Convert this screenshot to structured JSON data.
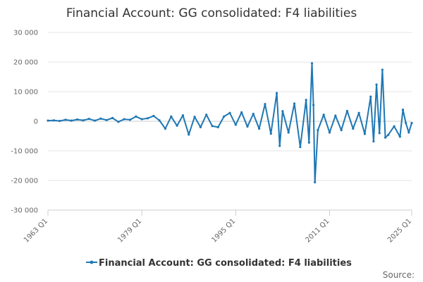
{
  "chart_data": {
    "type": "line",
    "title": "Financial Account: GG consolidated: F4 liabilities",
    "xlabel": "",
    "ylabel": "",
    "source_label": "Source:",
    "legend_position": "bottom",
    "grid": true,
    "xlim": [
      "1963 Q1",
      "2025 Q1"
    ],
    "ylim": [
      -30000,
      30000
    ],
    "ytick_labels": [
      "30 000",
      "20 000",
      "10 000",
      "0",
      "-10 000",
      "-20 000",
      "-30 000"
    ],
    "xtick_labels": [
      "1963 Q1",
      "1979 Q1",
      "1995 Q1",
      "2011 Q1",
      "2025 Q1"
    ],
    "series": [
      {
        "name": "Financial Account: GG consolidated: F4 liabilities",
        "color": "#1f78b4",
        "points": [
          [
            "1963 Q1",
            200
          ],
          [
            "1964 Q1",
            300
          ],
          [
            "1965 Q1",
            100
          ],
          [
            "1966 Q1",
            500
          ],
          [
            "1967 Q1",
            200
          ],
          [
            "1968 Q1",
            600
          ],
          [
            "1969 Q1",
            300
          ],
          [
            "1970 Q1",
            800
          ],
          [
            "1971 Q1",
            200
          ],
          [
            "1972 Q1",
            900
          ],
          [
            "1973 Q1",
            400
          ],
          [
            "1974 Q1",
            1100
          ],
          [
            "1975 Q1",
            -200
          ],
          [
            "1976 Q1",
            700
          ],
          [
            "1977 Q1",
            500
          ],
          [
            "1978 Q1",
            1600
          ],
          [
            "1979 Q1",
            700
          ],
          [
            "1980 Q1",
            1000
          ],
          [
            "1981 Q1",
            1800
          ],
          [
            "1982 Q1",
            300
          ],
          [
            "1983 Q1",
            -2500
          ],
          [
            "1984 Q1",
            1600
          ],
          [
            "1985 Q1",
            -1500
          ],
          [
            "1986 Q1",
            2000
          ],
          [
            "1987 Q1",
            -4500
          ],
          [
            "1988 Q1",
            1500
          ],
          [
            "1989 Q1",
            -2000
          ],
          [
            "1990 Q1",
            2200
          ],
          [
            "1991 Q1",
            -1600
          ],
          [
            "1992 Q1",
            -2000
          ],
          [
            "1993 Q1",
            1600
          ],
          [
            "1994 Q1",
            2800
          ],
          [
            "1995 Q1",
            -1200
          ],
          [
            "1996 Q1",
            3000
          ],
          [
            "1997 Q1",
            -1800
          ],
          [
            "1998 Q1",
            2500
          ],
          [
            "1999 Q1",
            -2500
          ],
          [
            "2000 Q1",
            5800
          ],
          [
            "2001 Q1",
            -4200
          ],
          [
            "2002 Q1",
            9500
          ],
          [
            "2002 Q3",
            -8300
          ],
          [
            "2003 Q1",
            3400
          ],
          [
            "2004 Q1",
            -3800
          ],
          [
            "2005 Q1",
            6000
          ],
          [
            "2006 Q1",
            -8700
          ],
          [
            "2007 Q1",
            7200
          ],
          [
            "2007 Q3",
            -7200
          ],
          [
            "2008 Q1",
            19600
          ],
          [
            "2008 Q2",
            5500
          ],
          [
            "2008 Q3",
            -20600
          ],
          [
            "2009 Q1",
            -3000
          ],
          [
            "2010 Q1",
            2200
          ],
          [
            "2011 Q1",
            -3800
          ],
          [
            "2012 Q1",
            1900
          ],
          [
            "2013 Q1",
            -3000
          ],
          [
            "2014 Q1",
            3500
          ],
          [
            "2015 Q1",
            -2500
          ],
          [
            "2016 Q1",
            2800
          ],
          [
            "2017 Q1",
            -4300
          ],
          [
            "2018 Q1",
            8300
          ],
          [
            "2018 Q3",
            -6800
          ],
          [
            "2019 Q1",
            12400
          ],
          [
            "2019 Q3",
            -4000
          ],
          [
            "2020 Q1",
            17400
          ],
          [
            "2020 Q3",
            -5500
          ],
          [
            "2021 Q1",
            -4600
          ],
          [
            "2022 Q1",
            -1700
          ],
          [
            "2023 Q1",
            -5200
          ],
          [
            "2023 Q3",
            3900
          ],
          [
            "2024 Q1",
            -600
          ],
          [
            "2024 Q3",
            -3800
          ],
          [
            "2025 Q1",
            -600
          ]
        ]
      }
    ]
  }
}
